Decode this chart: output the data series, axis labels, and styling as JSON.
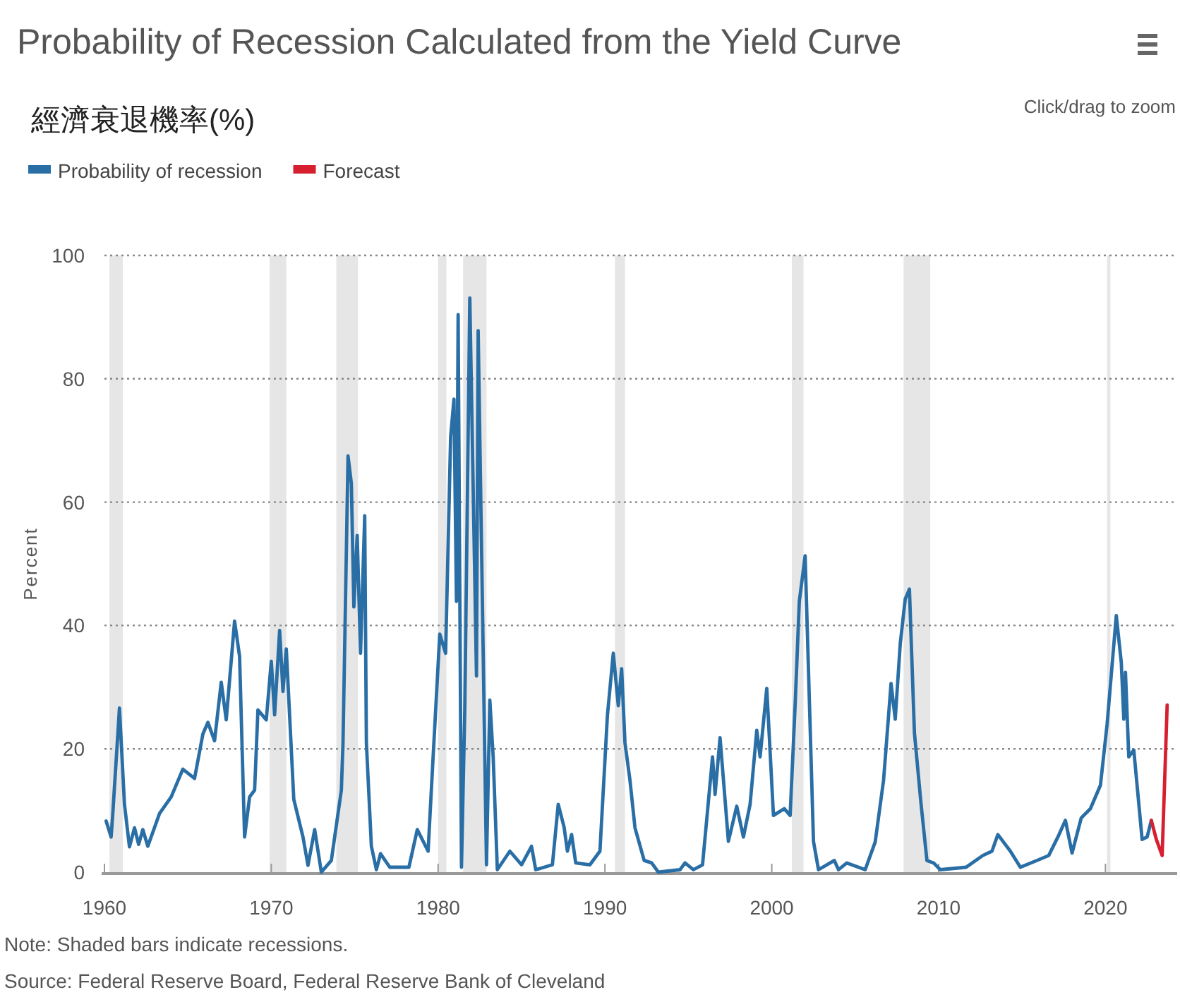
{
  "chart_data": {
    "type": "line",
    "title": "Probability of Recession Calculated from the Yield Curve",
    "subtitle": "經濟衰退機率(%)",
    "ylabel": "Percent",
    "xlim": [
      1960,
      2024.3
    ],
    "ylim": [
      0,
      100
    ],
    "xticks": [
      1960,
      1970,
      1980,
      1990,
      2000,
      2010,
      2020
    ],
    "yticks": [
      0,
      20,
      40,
      60,
      80,
      100
    ],
    "grid": "y",
    "legend": "top left",
    "marker": "none",
    "line_style": "solid",
    "bands": [
      {
        "axis": "x",
        "from": 1960.3,
        "to": 1961.1,
        "color": "#e6e6e6"
      },
      {
        "axis": "x",
        "from": 1969.9,
        "to": 1970.9,
        "color": "#e6e6e6"
      },
      {
        "axis": "x",
        "from": 1973.9,
        "to": 1975.2,
        "color": "#e6e6e6"
      },
      {
        "axis": "x",
        "from": 1980.0,
        "to": 1980.5,
        "color": "#e6e6e6"
      },
      {
        "axis": "x",
        "from": 1981.5,
        "to": 1982.9,
        "color": "#e6e6e6"
      },
      {
        "axis": "x",
        "from": 1990.6,
        "to": 1991.2,
        "color": "#e6e6e6"
      },
      {
        "axis": "x",
        "from": 2001.2,
        "to": 2001.9,
        "color": "#e6e6e6"
      },
      {
        "axis": "x",
        "from": 2007.9,
        "to": 2009.5,
        "color": "#e6e6e6"
      },
      {
        "axis": "x",
        "from": 2020.1,
        "to": 2020.3,
        "color": "#e6e6e6"
      }
    ],
    "series": [
      {
        "name": "Probability of recession",
        "color": "#2a6ea6",
        "x": [
          1960.1,
          1960.4,
          1960.5,
          1960.9,
          1961.2,
          1961.5,
          1961.8,
          1962.05,
          1962.3,
          1962.6,
          1963.3,
          1964.0,
          1964.7,
          1965.4,
          1965.9,
          1966.2,
          1966.6,
          1967.0,
          1967.3,
          1967.8,
          1968.1,
          1968.4,
          1968.7,
          1969.0,
          1969.2,
          1969.7,
          1970.0,
          1970.2,
          1970.5,
          1970.7,
          1970.9,
          1971.35,
          1971.9,
          1972.2,
          1972.6,
          1973.0,
          1973.6,
          1974.2,
          1974.3,
          1974.6,
          1974.8,
          1974.95,
          1975.15,
          1975.35,
          1975.6,
          1975.7,
          1976.0,
          1976.3,
          1976.55,
          1977.1,
          1978.25,
          1978.75,
          1979.4,
          1979.7,
          1980.1,
          1980.45,
          1980.75,
          1980.95,
          1981.1,
          1981.2,
          1981.4,
          1981.6,
          1981.9,
          1982.3,
          1982.4,
          1982.9,
          1983.1,
          1983.3,
          1983.55,
          1984.3,
          1985.0,
          1985.6,
          1985.85,
          1986.85,
          1987.2,
          1987.55,
          1987.75,
          1988.0,
          1988.25,
          1989.1,
          1989.7,
          1990.15,
          1990.5,
          1990.8,
          1991.0,
          1991.2,
          1991.5,
          1991.8,
          1992.35,
          1992.8,
          1993.2,
          1994.5,
          1994.8,
          1995.3,
          1995.85,
          1996.45,
          1996.6,
          1996.9,
          1997.4,
          1997.9,
          1998.3,
          1998.7,
          1999.1,
          1999.3,
          1999.7,
          2000.1,
          2000.75,
          2001.1,
          2001.4,
          2001.65,
          2002.0,
          2002.5,
          2002.8,
          2003.75,
          2004.0,
          2004.5,
          2005.6,
          2006.2,
          2006.7,
          2007.15,
          2007.4,
          2007.7,
          2008.0,
          2008.25,
          2008.55,
          2008.95,
          2009.3,
          2009.7,
          2010.1,
          2011.65,
          2012.65,
          2013.2,
          2013.55,
          2014.3,
          2014.9,
          2015.9,
          2016.6,
          2017.15,
          2017.6,
          2018.0,
          2018.55,
          2019.1,
          2019.7,
          2020.1,
          2020.65,
          2020.95,
          2021.1,
          2021.2,
          2021.4,
          2021.7,
          2022.2,
          2022.5,
          2022.75
        ],
        "values": [
          8.3,
          5.7,
          9.5,
          26.6,
          11,
          4.1,
          7.2,
          4.5,
          6.9,
          4.2,
          9.5,
          12.2,
          16.7,
          15.2,
          22.4,
          24.3,
          21.3,
          30.8,
          24.7,
          40.7,
          35,
          5.7,
          12.2,
          13.3,
          26.3,
          24.7,
          34.2,
          25.5,
          39.2,
          29.3,
          36.2,
          11.8,
          5.7,
          1.1,
          6.9,
          0,
          1.9,
          13.3,
          21,
          67.5,
          63,
          43,
          54.6,
          35.5,
          57.8,
          21,
          4.2,
          0.4,
          3,
          0.8,
          0.8,
          6.9,
          3.4,
          18.7,
          38.6,
          35.5,
          70.6,
          76.7,
          43.9,
          90.4,
          0.8,
          26.4,
          93.1,
          31.8,
          87.8,
          1.2,
          27.9,
          18.7,
          0.4,
          3.4,
          1.2,
          4.2,
          0.4,
          1.2,
          11,
          7.3,
          3.4,
          6.1,
          1.5,
          1.2,
          3.4,
          25.5,
          35.5,
          27,
          33,
          21,
          14.9,
          7.2,
          1.9,
          1.5,
          0,
          0.4,
          1.5,
          0.4,
          1.2,
          18.7,
          12.6,
          21.8,
          5,
          10.7,
          5.7,
          11,
          23,
          18.7,
          29.8,
          9.2,
          10.3,
          9.2,
          27.1,
          43.9,
          51.3,
          5,
          0.4,
          1.9,
          0.4,
          1.5,
          0.4,
          4.9,
          14.9,
          30.6,
          24.8,
          37,
          44.3,
          45.9,
          22.6,
          11,
          1.9,
          1.5,
          0.4,
          0.8,
          2.7,
          3.4,
          6.1,
          3.4,
          0.8,
          1.9,
          2.7,
          5.7,
          8.4,
          3.1,
          8.8,
          10.3,
          14.1,
          24,
          41.6,
          34,
          24.8,
          32.4,
          18.7,
          19.8,
          5.3,
          5.7,
          8.4
        ]
      },
      {
        "name": "Forecast",
        "color": "#d62030",
        "x": [
          2022.75,
          2023.05,
          2023.4,
          2023.7
        ],
        "values": [
          8.4,
          5.3,
          2.7,
          27.1
        ]
      }
    ],
    "annotations": [
      "Click/drag to zoom",
      "Note: Shaded bars indicate recessions.",
      "Source: Federal Reserve Board, Federal Reserve Bank of Cleveland"
    ]
  }
}
